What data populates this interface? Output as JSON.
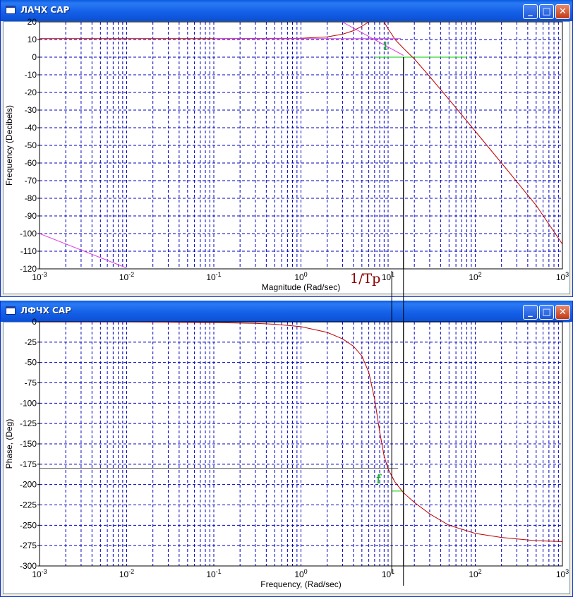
{
  "windows": [
    {
      "title": "ЛАЧХ САР",
      "buttons": {
        "minimize": "_",
        "maximize": "□",
        "close": "✕"
      }
    },
    {
      "title": "ЛФЧХ САР",
      "buttons": {
        "minimize": "_",
        "maximize": "□",
        "close": "✕"
      }
    }
  ],
  "annotations": {
    "tp_label": "1/Tp",
    "l_label": "l",
    "f_label": "f"
  },
  "colors": {
    "curve": "#c00000",
    "asymptote": "#e040e0",
    "grid": "#0000c0",
    "marker": "#00cc00",
    "guide": "#000000"
  },
  "chart_data": [
    {
      "type": "line",
      "xscale": "log",
      "xlim": [
        0.001,
        1000
      ],
      "ylim": [
        -120,
        20
      ],
      "xlabel": "Magnitude (Rad/sec)",
      "ylabel": "Frequency (Decibels)",
      "x_ticks": [
        {
          "base": "10",
          "exp": "-3"
        },
        {
          "base": "10",
          "exp": "-2"
        },
        {
          "base": "10",
          "exp": "-1"
        },
        {
          "base": "10",
          "exp": "0"
        },
        {
          "base": "10",
          "exp": "1"
        },
        {
          "base": "10",
          "exp": "2"
        },
        {
          "base": "10",
          "exp": "3"
        }
      ],
      "y_ticks": [
        "20",
        "10",
        "0",
        "-10",
        "-20",
        "-30",
        "-40",
        "-50",
        "-60",
        "-70",
        "-80",
        "-90",
        "-100",
        "-110",
        "-120"
      ],
      "y_tick_values": [
        20,
        10,
        0,
        -10,
        -20,
        -30,
        -40,
        -50,
        -60,
        -70,
        -80,
        -90,
        -100,
        -110,
        -120
      ],
      "grid": true,
      "series": [
        {
          "role": "curve",
          "x": [
            0.001,
            0.01,
            0.1,
            1,
            2,
            3,
            4,
            5,
            6,
            7,
            8,
            9,
            10,
            11,
            12,
            15,
            20,
            30,
            50,
            100,
            200,
            500,
            1000
          ],
          "y": [
            10.5,
            10.5,
            10.5,
            10.7,
            11.5,
            13,
            15,
            17.5,
            20,
            22,
            22.5,
            20,
            16,
            13,
            10,
            5,
            -1,
            -11,
            -24,
            -42,
            -60,
            -84,
            -106
          ]
        },
        {
          "role": "asymptote",
          "x": [
            0.001,
            0.01
          ],
          "y": [
            -100,
            -119.5
          ]
        },
        {
          "role": "asymptote",
          "x": [
            0.1,
            1.7
          ],
          "y": [
            10.5,
            10.5
          ]
        },
        {
          "role": "asymptote",
          "x": [
            1.7,
            5,
            14
          ],
          "y": [
            10.5,
            10.5,
            10.5
          ]
        },
        {
          "role": "asymptote",
          "x": [
            2.3,
            15
          ],
          "y": [
            23,
            1
          ]
        }
      ],
      "markers": [
        {
          "role": "zero-line",
          "x": [
            7,
            80
          ],
          "y": [
            0,
            0
          ]
        },
        {
          "role": "crossover",
          "x": [
            15,
            15
          ],
          "y": [
            0,
            -120
          ]
        }
      ]
    },
    {
      "type": "line",
      "xscale": "log",
      "xlim": [
        0.001,
        1000
      ],
      "ylim": [
        -300,
        0
      ],
      "xlabel": "Frequency, (Rad/sec)",
      "ylabel": "Phase, (Deg)",
      "x_ticks": [
        {
          "base": "10",
          "exp": "-3"
        },
        {
          "base": "10",
          "exp": "-2"
        },
        {
          "base": "10",
          "exp": "-1"
        },
        {
          "base": "10",
          "exp": "0"
        },
        {
          "base": "10",
          "exp": "1"
        },
        {
          "base": "10",
          "exp": "2"
        },
        {
          "base": "10",
          "exp": "3"
        }
      ],
      "y_ticks": [
        "0",
        "-25",
        "-50",
        "-75",
        "-100",
        "-125",
        "-150",
        "-175",
        "-200",
        "-225",
        "-250",
        "-275",
        "-300"
      ],
      "y_tick_values": [
        0,
        -25,
        -50,
        -75,
        -100,
        -125,
        -150,
        -175,
        -200,
        -225,
        -250,
        -275,
        -300
      ],
      "grid": true,
      "series": [
        {
          "role": "curve",
          "x": [
            0.001,
            0.01,
            0.1,
            0.3,
            0.5,
            1,
            2,
            3,
            4,
            5,
            6,
            7,
            8,
            9,
            10,
            12,
            15,
            20,
            30,
            50,
            100,
            200,
            500,
            1000
          ],
          "y": [
            0,
            0,
            -1,
            -2,
            -3,
            -6,
            -13,
            -21,
            -30,
            -42,
            -62,
            -95,
            -135,
            -165,
            -181,
            -197,
            -210,
            -222,
            -236,
            -250,
            -260,
            -265,
            -269,
            -270
          ]
        }
      ],
      "markers": [
        {
          "role": "pi-line",
          "x": [
            0.001,
            13
          ],
          "y": [
            -180,
            -180
          ]
        },
        {
          "role": "phase-at-crossover",
          "x": [
            11,
            15
          ],
          "y": [
            -208,
            -208
          ]
        },
        {
          "role": "crossover",
          "x": [
            15,
            15
          ],
          "y": [
            0,
            -300
          ]
        }
      ]
    }
  ]
}
